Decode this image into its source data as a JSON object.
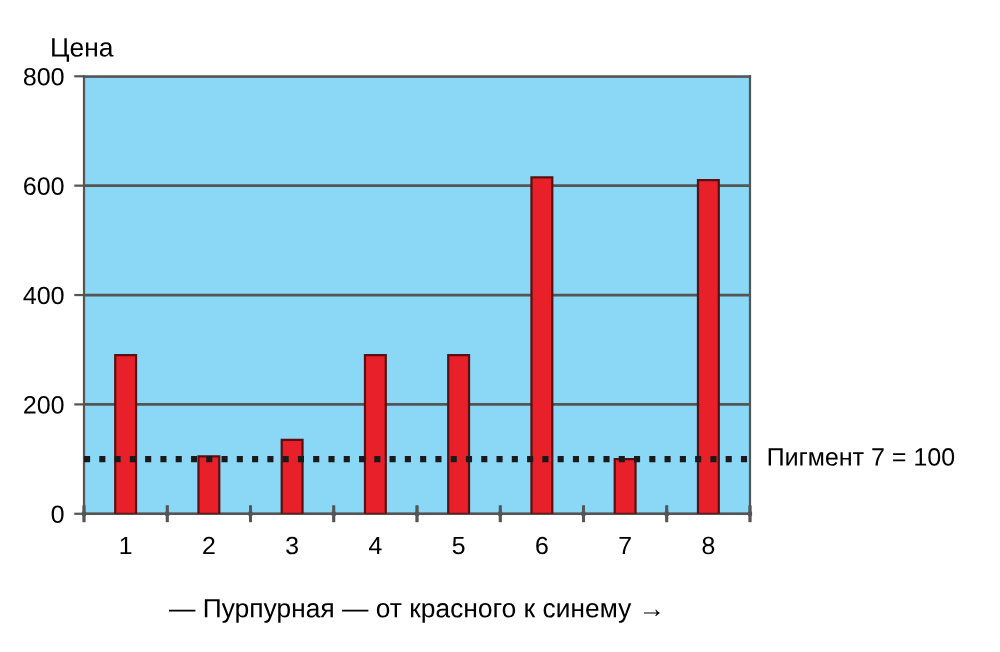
{
  "chart_data": {
    "type": "bar",
    "ylabel": "Цена",
    "xlabel": "— Пурпурная — от красного к синему →",
    "categories": [
      "1",
      "2",
      "3",
      "4",
      "5",
      "6",
      "7",
      "8"
    ],
    "values": [
      290,
      105,
      135,
      290,
      290,
      615,
      100,
      610
    ],
    "color": "#e8202a",
    "ylim": [
      0,
      800
    ],
    "yticks": [
      0,
      200,
      400,
      600,
      800
    ],
    "grid": "y",
    "ref_lines": [
      {
        "axis": "y",
        "value": 100,
        "label": "Пигмент 7 = 100",
        "color": "#1a1a1a",
        "line_style": "dotted"
      }
    ]
  }
}
